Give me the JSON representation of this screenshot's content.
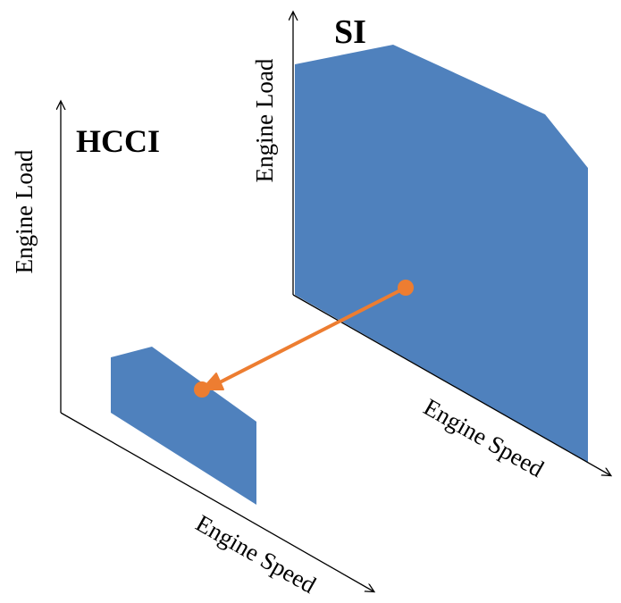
{
  "si_panel": {
    "title": "SI",
    "y_axis_label": "Engine Load",
    "x_axis_label": "Engine Speed"
  },
  "hcci_panel": {
    "title": "HCCI",
    "y_axis_label": "Engine Load",
    "x_axis_label": "Engine Speed"
  },
  "colors": {
    "region_fill": "#4F81BD",
    "transition_arrow": "#ED7D31",
    "axes": "#000000"
  }
}
